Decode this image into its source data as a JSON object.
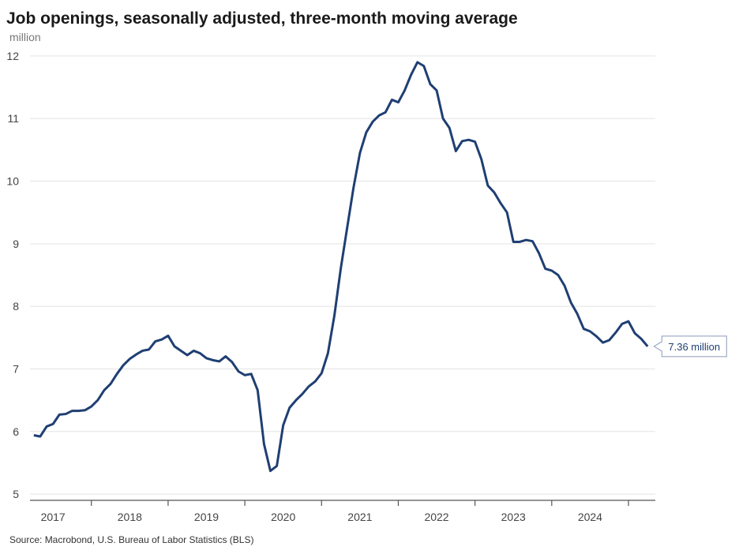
{
  "chart_data": {
    "type": "line",
    "title": "Job openings, seasonally adjusted, three-month moving average",
    "ylabel": "million",
    "source": "Source: Macrobond, U.S. Bureau of Labor Statistics (BLS)",
    "annotation": "7.36 million",
    "xlim": [
      2017.2,
      2025.35
    ],
    "xticks": [
      {
        "value": 2017.5,
        "label": "2017"
      },
      {
        "value": 2018.5,
        "label": "2018"
      },
      {
        "value": 2019.5,
        "label": "2019"
      },
      {
        "value": 2020.5,
        "label": "2020"
      },
      {
        "value": 2021.5,
        "label": "2021"
      },
      {
        "value": 2022.5,
        "label": "2022"
      },
      {
        "value": 2023.5,
        "label": "2023"
      },
      {
        "value": 2024.5,
        "label": "2024"
      }
    ],
    "ylim": [
      4.9,
      12.1
    ],
    "yticks": [
      5,
      6,
      7,
      8,
      9,
      10,
      11,
      12
    ],
    "grid": true,
    "x": [
      2017.25,
      2017.333,
      2017.417,
      2017.5,
      2017.583,
      2017.667,
      2017.75,
      2017.833,
      2017.917,
      2018,
      2018.083,
      2018.167,
      2018.25,
      2018.333,
      2018.417,
      2018.5,
      2018.583,
      2018.667,
      2018.75,
      2018.833,
      2018.917,
      2019,
      2019.083,
      2019.167,
      2019.25,
      2019.333,
      2019.417,
      2019.5,
      2019.583,
      2019.667,
      2019.75,
      2019.833,
      2019.917,
      2020,
      2020.083,
      2020.167,
      2020.25,
      2020.333,
      2020.417,
      2020.5,
      2020.583,
      2020.667,
      2020.75,
      2020.833,
      2020.917,
      2021,
      2021.083,
      2021.167,
      2021.25,
      2021.333,
      2021.417,
      2021.5,
      2021.583,
      2021.667,
      2021.75,
      2021.833,
      2021.917,
      2022,
      2022.083,
      2022.167,
      2022.25,
      2022.333,
      2022.417,
      2022.5,
      2022.583,
      2022.667,
      2022.75,
      2022.833,
      2022.917,
      2023,
      2023.083,
      2023.167,
      2023.25,
      2023.333,
      2023.417,
      2023.5,
      2023.583,
      2023.667,
      2023.75,
      2023.833,
      2023.917,
      2024,
      2024.083,
      2024.167,
      2024.25,
      2024.333,
      2024.417,
      2024.5,
      2024.583,
      2024.667,
      2024.75,
      2024.833,
      2024.917,
      2025,
      2025.083,
      2025.167,
      2025.25
    ],
    "series": [
      {
        "name": "Job openings",
        "color": "#1f3f73",
        "values": [
          5.94,
          5.92,
          6.08,
          6.12,
          6.27,
          6.28,
          6.33,
          6.33,
          6.34,
          6.4,
          6.5,
          6.66,
          6.76,
          6.92,
          7.06,
          7.16,
          7.23,
          7.29,
          7.31,
          7.44,
          7.47,
          7.53,
          7.36,
          7.29,
          7.22,
          7.29,
          7.25,
          7.17,
          7.14,
          7.12,
          7.2,
          7.11,
          6.96,
          6.9,
          6.92,
          6.66,
          5.8,
          5.37,
          5.45,
          6.1,
          6.38,
          6.5,
          6.6,
          6.72,
          6.8,
          6.93,
          7.25,
          7.85,
          8.6,
          9.25,
          9.9,
          10.45,
          10.78,
          10.95,
          11.05,
          11.1,
          11.3,
          11.26,
          11.45,
          11.7,
          11.9,
          11.84,
          11.55,
          11.45,
          11.0,
          10.85,
          10.48,
          10.64,
          10.66,
          10.63,
          10.35,
          9.93,
          9.82,
          9.65,
          9.5,
          9.03,
          9.03,
          9.06,
          9.04,
          8.85,
          8.6,
          8.57,
          8.5,
          8.33,
          8.06,
          7.88,
          7.64,
          7.6,
          7.52,
          7.42,
          7.46,
          7.58,
          7.72,
          7.76,
          7.57,
          7.48,
          7.36
        ]
      }
    ]
  }
}
